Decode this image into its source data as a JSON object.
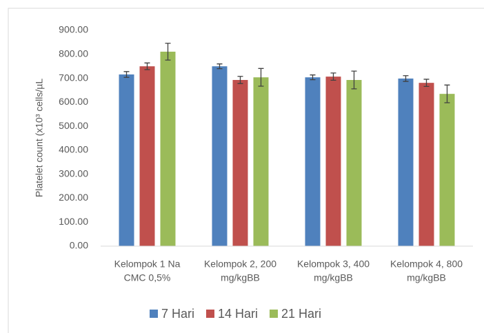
{
  "chart_data": {
    "type": "bar",
    "y_label": "Platelet count (x10³ cells/µL",
    "categories": [
      [
        "Kelompok 1 Na",
        "CMC 0,5%"
      ],
      [
        "Kelompok 2, 200",
        "mg/kgBB"
      ],
      [
        "Kelompok 3, 400",
        "mg/kgBB"
      ],
      [
        "Kelompok 4, 800",
        "mg/kgBB"
      ]
    ],
    "series": [
      {
        "name": "7 Hari",
        "color": "#4f81bd",
        "values": [
          716,
          750,
          704,
          699
        ],
        "errors": [
          12,
          10,
          10,
          12
        ]
      },
      {
        "name": "14 Hari",
        "color": "#c0504d",
        "values": [
          750,
          693,
          707,
          681
        ],
        "errors": [
          14,
          15,
          15,
          15
        ]
      },
      {
        "name": "21 Hari",
        "color": "#9bbb59",
        "values": [
          811,
          704,
          693,
          635
        ],
        "errors": [
          35,
          37,
          37,
          37
        ]
      }
    ],
    "ylim": [
      0,
      900
    ],
    "yticks": [
      {
        "value": 0,
        "label": "0.00"
      },
      {
        "value": 100,
        "label": "100.00"
      },
      {
        "value": 200,
        "label": "200.00"
      },
      {
        "value": 300,
        "label": "300.00"
      },
      {
        "value": 400,
        "label": "400.00"
      },
      {
        "value": 500,
        "label": "500.00"
      },
      {
        "value": 600,
        "label": "600.00"
      },
      {
        "value": 700,
        "label": "700.00"
      },
      {
        "value": 800,
        "label": "800.00"
      },
      {
        "value": 900,
        "label": "900.00"
      }
    ],
    "grid": false,
    "legend": "bottom"
  }
}
